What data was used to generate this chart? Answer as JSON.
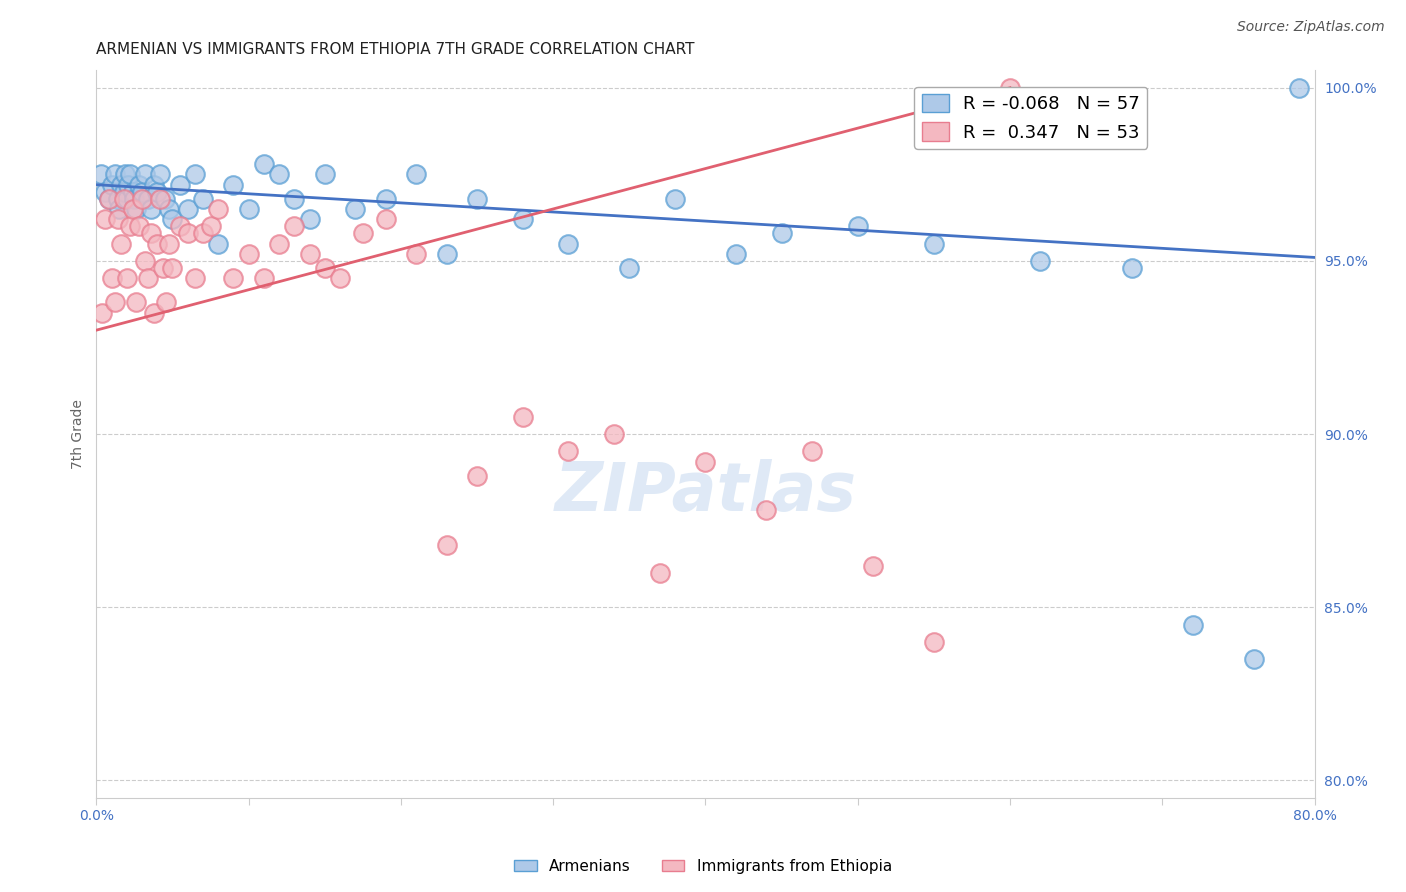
{
  "title": "ARMENIAN VS IMMIGRANTS FROM ETHIOPIA 7TH GRADE CORRELATION CHART",
  "source": "Source: ZipAtlas.com",
  "ylabel": "7th Grade",
  "xlim": [
    0.0,
    0.8
  ],
  "ylim": [
    0.795,
    1.005
  ],
  "yticks": [
    0.8,
    0.85,
    0.9,
    0.95,
    1.0
  ],
  "ytick_labels": [
    "80.0%",
    "85.0%",
    "90.0%",
    "95.0%",
    "100.0%"
  ],
  "xticks": [
    0.0,
    0.1,
    0.2,
    0.3,
    0.4,
    0.5,
    0.6,
    0.7,
    0.8
  ],
  "xtick_labels": [
    "0.0%",
    "",
    "",
    "",
    "",
    "",
    "",
    "",
    "80.0%"
  ],
  "blue_color": "#aec9e8",
  "pink_color": "#f4b8c1",
  "blue_edge_color": "#5a9fd4",
  "pink_edge_color": "#e87d8f",
  "blue_line_color": "#4472c4",
  "pink_line_color": "#e06070",
  "legend_blue_R": "-0.068",
  "legend_blue_N": "57",
  "legend_pink_R": " 0.347",
  "legend_pink_N": "53",
  "watermark": "ZIPatlas",
  "blue_x": [
    0.003,
    0.006,
    0.008,
    0.01,
    0.012,
    0.014,
    0.015,
    0.016,
    0.018,
    0.019,
    0.02,
    0.021,
    0.022,
    0.024,
    0.025,
    0.026,
    0.028,
    0.03,
    0.032,
    0.034,
    0.036,
    0.038,
    0.04,
    0.042,
    0.045,
    0.048,
    0.05,
    0.055,
    0.06,
    0.065,
    0.07,
    0.08,
    0.09,
    0.1,
    0.11,
    0.12,
    0.13,
    0.14,
    0.15,
    0.17,
    0.19,
    0.21,
    0.23,
    0.25,
    0.28,
    0.31,
    0.35,
    0.38,
    0.42,
    0.45,
    0.5,
    0.55,
    0.62,
    0.68,
    0.72,
    0.76,
    0.79
  ],
  "blue_y": [
    0.975,
    0.97,
    0.968,
    0.972,
    0.975,
    0.968,
    0.965,
    0.972,
    0.97,
    0.975,
    0.968,
    0.972,
    0.975,
    0.97,
    0.968,
    0.965,
    0.972,
    0.97,
    0.975,
    0.968,
    0.965,
    0.972,
    0.97,
    0.975,
    0.968,
    0.965,
    0.962,
    0.972,
    0.965,
    0.975,
    0.968,
    0.955,
    0.972,
    0.965,
    0.978,
    0.975,
    0.968,
    0.962,
    0.975,
    0.965,
    0.968,
    0.975,
    0.952,
    0.968,
    0.962,
    0.955,
    0.948,
    0.968,
    0.952,
    0.958,
    0.96,
    0.955,
    0.95,
    0.948,
    0.845,
    0.835,
    1.0
  ],
  "pink_x": [
    0.004,
    0.006,
    0.008,
    0.01,
    0.012,
    0.014,
    0.016,
    0.018,
    0.02,
    0.022,
    0.024,
    0.026,
    0.028,
    0.03,
    0.032,
    0.034,
    0.036,
    0.038,
    0.04,
    0.042,
    0.044,
    0.046,
    0.048,
    0.05,
    0.055,
    0.06,
    0.065,
    0.07,
    0.075,
    0.08,
    0.09,
    0.1,
    0.11,
    0.12,
    0.13,
    0.14,
    0.15,
    0.16,
    0.175,
    0.19,
    0.21,
    0.23,
    0.25,
    0.28,
    0.31,
    0.34,
    0.37,
    0.4,
    0.44,
    0.47,
    0.51,
    0.55,
    0.6
  ],
  "pink_y": [
    0.935,
    0.962,
    0.968,
    0.945,
    0.938,
    0.962,
    0.955,
    0.968,
    0.945,
    0.96,
    0.965,
    0.938,
    0.96,
    0.968,
    0.95,
    0.945,
    0.958,
    0.935,
    0.955,
    0.968,
    0.948,
    0.938,
    0.955,
    0.948,
    0.96,
    0.958,
    0.945,
    0.958,
    0.96,
    0.965,
    0.945,
    0.952,
    0.945,
    0.955,
    0.96,
    0.952,
    0.948,
    0.945,
    0.958,
    0.962,
    0.952,
    0.868,
    0.888,
    0.905,
    0.895,
    0.9,
    0.86,
    0.892,
    0.878,
    0.895,
    0.862,
    0.84,
    1.0
  ],
  "title_fontsize": 11,
  "axis_label_fontsize": 10,
  "tick_fontsize": 10,
  "legend_fontsize": 13,
  "source_fontsize": 10,
  "watermark_fontsize": 48,
  "background_color": "#ffffff",
  "grid_color": "#cccccc",
  "tick_color": "#4472c4",
  "ylabel_color": "#666666"
}
